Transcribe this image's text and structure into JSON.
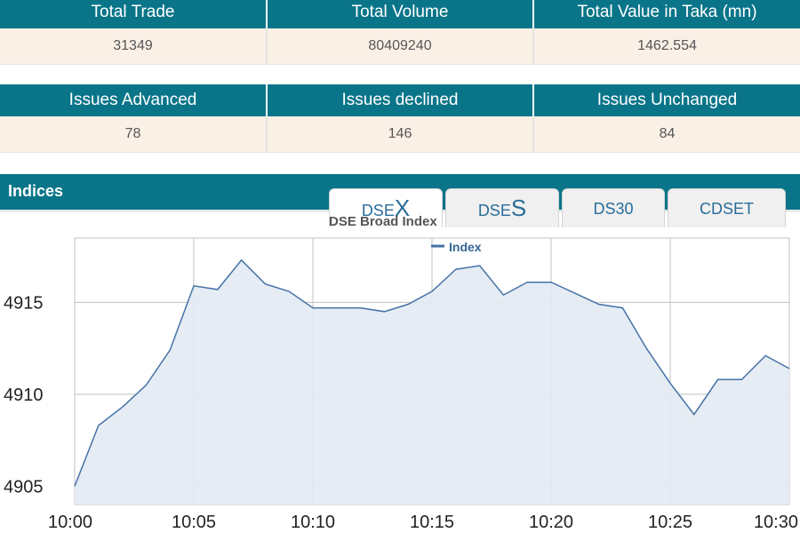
{
  "summary": {
    "headers": [
      "Total Trade",
      "Total Volume",
      "Total Value in Taka (mn)"
    ],
    "values": [
      "31349",
      "80409240",
      "1462.554"
    ]
  },
  "issues": {
    "headers": [
      "Issues Advanced",
      "Issues declined",
      "Issues Unchanged"
    ],
    "values": [
      "78",
      "146",
      "84"
    ]
  },
  "indices": {
    "title": "Indices",
    "tabs": [
      {
        "prefix": "DSE",
        "suffix": "X",
        "active": true
      },
      {
        "prefix": "DSE",
        "suffix": "S",
        "active": false
      },
      {
        "prefix": "DS30",
        "suffix": "",
        "active": false
      },
      {
        "prefix": "CDSET",
        "suffix": "",
        "active": false
      }
    ]
  },
  "colors": {
    "header_bg": "#0a7589",
    "value_bg": "#fbf0e6",
    "line": "#4572a7",
    "area": "#e3eaf3"
  },
  "chart_data": {
    "type": "area",
    "title": "DSE Broad Index",
    "legend": {
      "label": "Index",
      "position": "top-center"
    },
    "xlabel": "",
    "ylabel": "",
    "x_ticks": [
      "10:00",
      "10:05",
      "10:10",
      "10:15",
      "10:20",
      "10:25",
      "10:30"
    ],
    "y_ticks": [
      4905,
      4910,
      4915
    ],
    "xlim": [
      0,
      30
    ],
    "ylim": [
      4904,
      4918.5
    ],
    "grid": true,
    "series": [
      {
        "name": "Index",
        "x": [
          0,
          1,
          2,
          3,
          4,
          5,
          6,
          7,
          8,
          9,
          10,
          11,
          12,
          13,
          14,
          15,
          16,
          17,
          18,
          19,
          20,
          21,
          22,
          23,
          24,
          25,
          26,
          27,
          28,
          29,
          30
        ],
        "y": [
          4905.0,
          4908.3,
          4909.3,
          4910.5,
          4912.4,
          4915.9,
          4915.7,
          4917.3,
          4916.0,
          4915.6,
          4914.7,
          4914.7,
          4914.7,
          4914.5,
          4914.9,
          4915.6,
          4916.8,
          4917.0,
          4915.4,
          4916.1,
          4916.1,
          4915.5,
          4914.9,
          4914.7,
          4912.5,
          4910.6,
          4908.9,
          4910.8,
          4910.8,
          4912.1,
          4911.4
        ]
      }
    ]
  }
}
